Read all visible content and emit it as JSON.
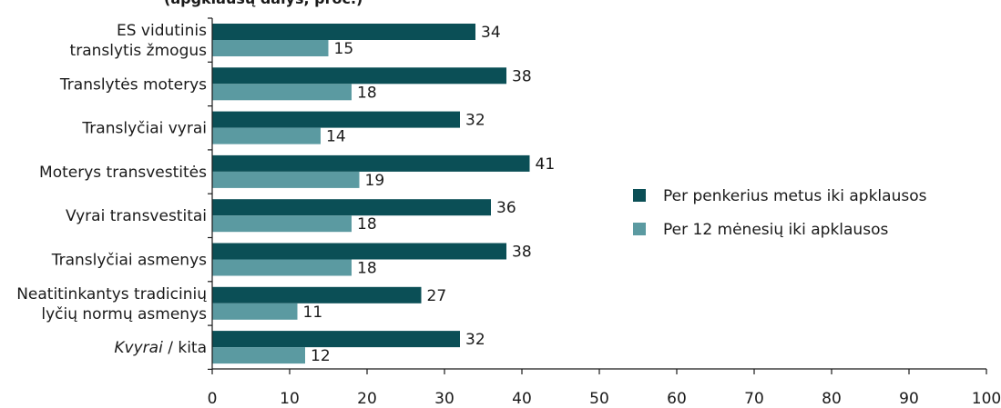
{
  "chart_data": {
    "type": "bar",
    "orientation": "horizontal",
    "title": "(apgklausų dalys, proc.)",
    "categories": [
      [
        "ES vidutinis",
        "translytis žmogus"
      ],
      [
        "Translytės moterys"
      ],
      [
        "Translyčiai vyrai"
      ],
      [
        "Moterys transvestitės"
      ],
      [
        "Vyrai transvestitai"
      ],
      [
        "Translyčiai asmenys"
      ],
      [
        "Neatitinkantys tradicinių",
        "lyčių normų asmenys"
      ],
      [
        "Kvyrai / kita"
      ]
    ],
    "category_italic_part": [
      "",
      "",
      "",
      "",
      "",
      "",
      "",
      "Kvyrai"
    ],
    "series": [
      {
        "name": "Per penkerius metus iki apklausos",
        "color": "#0b4f56",
        "values": [
          34,
          38,
          32,
          41,
          36,
          38,
          27,
          32
        ]
      },
      {
        "name": "Per 12 mėnesių iki apklausos",
        "color": "#5b9aa1",
        "values": [
          15,
          18,
          14,
          19,
          18,
          18,
          11,
          12
        ]
      }
    ],
    "xlim": [
      0,
      100
    ],
    "xticks": [
      0,
      10,
      20,
      30,
      40,
      50,
      60,
      70,
      80,
      90,
      100
    ],
    "xlabel": "",
    "ylabel": "",
    "grid": false,
    "legend_position": "right"
  }
}
